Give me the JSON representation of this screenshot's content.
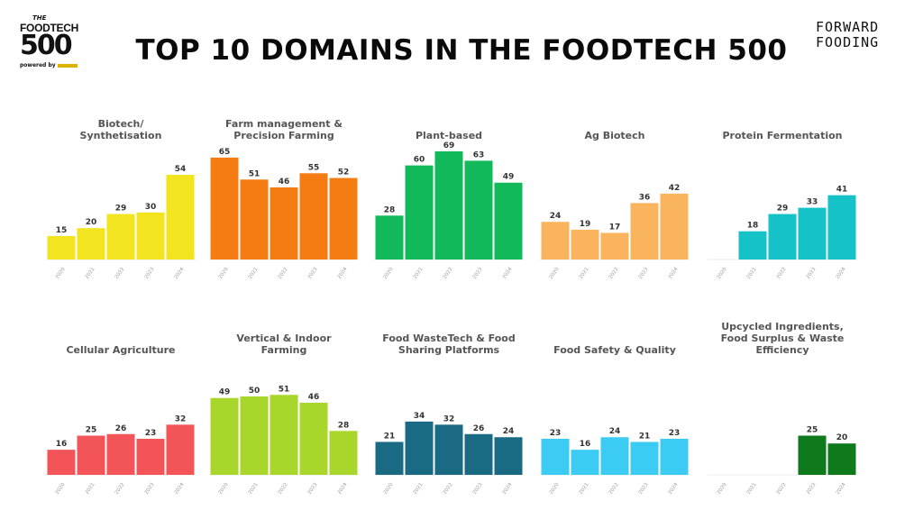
{
  "header": {
    "title": "TOP 10 DOMAINS IN THE FOODTECH 500",
    "logo_left": {
      "the": "THE",
      "name": "FOODTECH",
      "number": "500",
      "powered_by": "powered by"
    },
    "logo_right": {
      "line1": "FORWARD",
      "line2": "FOODING"
    }
  },
  "chart_data": [
    {
      "type": "bar",
      "title": "Biotech/ Synthetisation",
      "categories": [
        "2020",
        "2021",
        "2022",
        "2023",
        "2024"
      ],
      "values": [
        15,
        20,
        29,
        30,
        54
      ],
      "color": "#f2e41e"
    },
    {
      "type": "bar",
      "title": "Farm management & Precision Farming",
      "categories": [
        "2020",
        "2021",
        "2022",
        "2023",
        "2024"
      ],
      "values": [
        65,
        51,
        46,
        55,
        52
      ],
      "color": "#f47c12"
    },
    {
      "type": "bar",
      "title": "Plant-based",
      "categories": [
        "2020",
        "2021",
        "2022",
        "2023",
        "2024"
      ],
      "values": [
        28,
        60,
        69,
        63,
        49
      ],
      "color": "#12b95a"
    },
    {
      "type": "bar",
      "title": "Ag Biotech",
      "categories": [
        "2020",
        "2021",
        "2022",
        "2023",
        "2024"
      ],
      "values": [
        24,
        19,
        17,
        36,
        42
      ],
      "color": "#fab45e"
    },
    {
      "type": "bar",
      "title": "Protein Fermentation",
      "categories": [
        "2020",
        "2021",
        "2022",
        "2023",
        "2024"
      ],
      "values": [
        null,
        18,
        29,
        33,
        41
      ],
      "color": "#14c2c8"
    },
    {
      "type": "bar",
      "title": "Cellular Agriculture",
      "categories": [
        "2020",
        "2021",
        "2022",
        "2023",
        "2024"
      ],
      "values": [
        16,
        25,
        26,
        23,
        32
      ],
      "color": "#f25458"
    },
    {
      "type": "bar",
      "title": "Vertical & Indoor Farming",
      "categories": [
        "2020",
        "2021",
        "2022",
        "2023",
        "2024"
      ],
      "values": [
        49,
        50,
        51,
        46,
        28
      ],
      "color": "#a8d62a"
    },
    {
      "type": "bar",
      "title": "Food WasteTech & Food Sharing Platforms",
      "categories": [
        "2020",
        "2021",
        "2022",
        "2023",
        "2024"
      ],
      "values": [
        21,
        34,
        32,
        26,
        24
      ],
      "color": "#1a6a84"
    },
    {
      "type": "bar",
      "title": "Food Safety & Quality",
      "categories": [
        "2020",
        "2021",
        "2022",
        "2023",
        "2024"
      ],
      "values": [
        23,
        16,
        24,
        21,
        23
      ],
      "color": "#3ccbf2"
    },
    {
      "type": "bar",
      "title": "Upcycled Ingredients, Food Surplus & Waste Efficiency",
      "categories": [
        "2020",
        "2021",
        "2022",
        "2023",
        "2024"
      ],
      "values": [
        null,
        null,
        null,
        25,
        20
      ],
      "color": "#0f7a1c"
    }
  ]
}
